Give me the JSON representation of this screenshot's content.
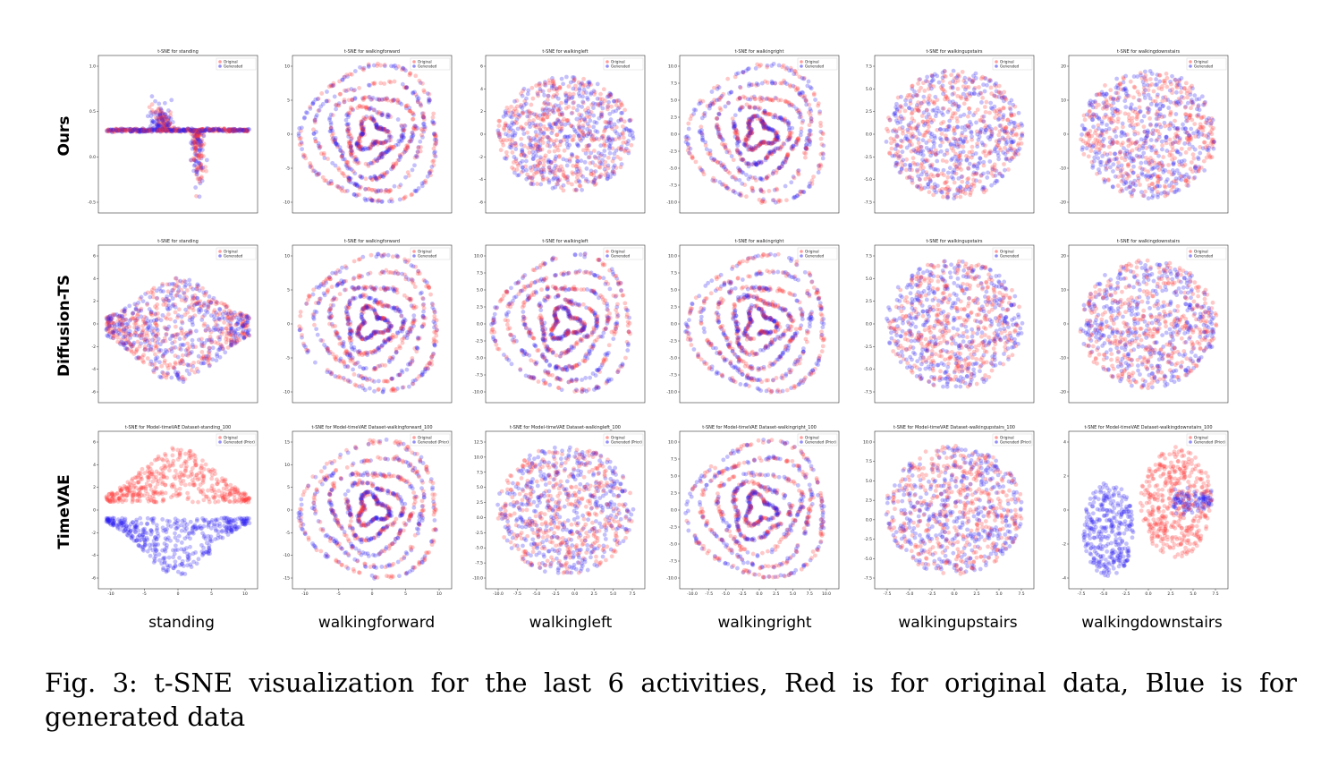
{
  "row_labels": [
    "Ours",
    "Diffusion-TS",
    "TimeVAE"
  ],
  "column_labels": [
    "standing",
    "walkingforward",
    "walkingleft",
    "walkingright",
    "walkingupstairs",
    "walkingdownstairs"
  ],
  "caption": {
    "prefix": "Fig. 3:",
    "text": "t-SNE visualization for the last 6 activities, Red is for original data, Blue is for generated data"
  },
  "colors": {
    "original": "#ff3b3b",
    "generated": "#2a1ef0"
  },
  "chart_data": [
    {
      "type": "scatter",
      "row": "Ours",
      "activity": "standing",
      "title": "t-SNE for standing",
      "legend": [
        "Original",
        "Generated"
      ],
      "shape": "standing_ours",
      "y_ticks": [
        "-0.5",
        "0.0",
        "0.5",
        "1.0"
      ],
      "x_ticks": []
    },
    {
      "type": "scatter",
      "row": "Ours",
      "activity": "walkingforward",
      "title": "t-SNE for walkingforward",
      "legend": [
        "Original",
        "Generated"
      ],
      "shape": "rings",
      "y_ticks": [
        "-10",
        "-5",
        "0",
        "5",
        "10"
      ],
      "x_ticks": []
    },
    {
      "type": "scatter",
      "row": "Ours",
      "activity": "walkingleft",
      "title": "t-SNE for walkingleft",
      "legend": [
        "Original",
        "Generated"
      ],
      "shape": "blob",
      "y_ticks": [
        "-6",
        "-4",
        "-2",
        "0",
        "2",
        "4",
        "6"
      ],
      "x_ticks": []
    },
    {
      "type": "scatter",
      "row": "Ours",
      "activity": "walkingright",
      "title": "t-SNE for walkingright",
      "legend": [
        "Original",
        "Generated"
      ],
      "shape": "rings",
      "y_ticks": [
        "-10.0",
        "-7.5",
        "-5.0",
        "-2.5",
        "0.0",
        "2.5",
        "5.0",
        "7.5",
        "10.0"
      ],
      "x_ticks": []
    },
    {
      "type": "scatter",
      "row": "Ours",
      "activity": "walkingupstairs",
      "title": "t-SNE for walkingupstairs",
      "legend": [
        "Original",
        "Generated"
      ],
      "shape": "disc",
      "y_ticks": [
        "-7.5",
        "-5.0",
        "-2.5",
        "0.0",
        "2.5",
        "5.0",
        "7.5"
      ],
      "x_ticks": []
    },
    {
      "type": "scatter",
      "row": "Ours",
      "activity": "walkingdownstairs",
      "title": "t-SNE for walkingdownstairs",
      "legend": [
        "Original",
        "Generated"
      ],
      "shape": "disc",
      "y_ticks": [
        "-20",
        "-10",
        "0",
        "10",
        "20"
      ],
      "x_ticks": []
    },
    {
      "type": "scatter",
      "row": "Diffusion-TS",
      "activity": "standing",
      "title": "t-SNE for standing",
      "legend": [
        "Original",
        "Generated"
      ],
      "shape": "standing_diff",
      "y_ticks": [
        "-6",
        "-4",
        "-2",
        "0",
        "2",
        "4",
        "6"
      ],
      "x_ticks": []
    },
    {
      "type": "scatter",
      "row": "Diffusion-TS",
      "activity": "walkingforward",
      "title": "t-SNE for walkingforward",
      "legend": [
        "Original",
        "Generated"
      ],
      "shape": "rings",
      "y_ticks": [
        "-10",
        "-5",
        "0",
        "5",
        "10"
      ],
      "x_ticks": []
    },
    {
      "type": "scatter",
      "row": "Diffusion-TS",
      "activity": "walkingleft",
      "title": "t-SNE for walkingleft",
      "legend": [
        "Original",
        "Generated"
      ],
      "shape": "rings",
      "y_ticks": [
        "-10.0",
        "-7.5",
        "-5.0",
        "-2.5",
        "0.0",
        "2.5",
        "5.0",
        "7.5",
        "10.0"
      ],
      "x_ticks": []
    },
    {
      "type": "scatter",
      "row": "Diffusion-TS",
      "activity": "walkingright",
      "title": "t-SNE for walkingright",
      "legend": [
        "Original",
        "Generated"
      ],
      "shape": "rings",
      "y_ticks": [
        "-10.0",
        "-7.5",
        "-5.0",
        "-2.5",
        "0.0",
        "2.5",
        "5.0",
        "7.5",
        "10.0"
      ],
      "x_ticks": []
    },
    {
      "type": "scatter",
      "row": "Diffusion-TS",
      "activity": "walkingupstairs",
      "title": "t-SNE for walkingupstairs",
      "legend": [
        "Original",
        "Generated"
      ],
      "shape": "disc",
      "y_ticks": [
        "-7.5",
        "-5.0",
        "-2.5",
        "0.0",
        "2.5",
        "5.0",
        "7.5"
      ],
      "x_ticks": []
    },
    {
      "type": "scatter",
      "row": "Diffusion-TS",
      "activity": "walkingdownstairs",
      "title": "t-SNE for walkingdownstairs",
      "legend": [
        "Original",
        "Generated"
      ],
      "shape": "disc",
      "y_ticks": [
        "-20",
        "-10",
        "0",
        "10",
        "20"
      ],
      "x_ticks": []
    },
    {
      "type": "scatter",
      "row": "TimeVAE",
      "activity": "standing",
      "title": "t-SNE for Model-timeVAE Dataset-standing_100",
      "legend": [
        "Original",
        "Generated (Prior)"
      ],
      "shape": "standing_vae",
      "y_ticks": [
        "-6",
        "-4",
        "-2",
        "0",
        "2",
        "4",
        "6"
      ],
      "x_ticks": [
        "-10",
        "-5",
        "0",
        "5",
        "10"
      ]
    },
    {
      "type": "scatter",
      "row": "TimeVAE",
      "activity": "walkingforward",
      "title": "t-SNE for Model-timeVAE Dataset-walkingforward_100",
      "legend": [
        "Original",
        "Generated (Prior)"
      ],
      "shape": "rings",
      "y_ticks": [
        "-15",
        "-10",
        "-5",
        "0",
        "5",
        "10",
        "15"
      ],
      "x_ticks": [
        "-10",
        "-5",
        "0",
        "5",
        "10"
      ]
    },
    {
      "type": "scatter",
      "row": "TimeVAE",
      "activity": "walkingleft",
      "title": "t-SNE for Model-timeVAE Dataset-walkingleft_100",
      "legend": [
        "Original",
        "Generated (Prior)"
      ],
      "shape": "disc",
      "y_ticks": [
        "-10.0",
        "-7.5",
        "-5.0",
        "-2.5",
        "0.0",
        "2.5",
        "5.0",
        "7.5",
        "10.0",
        "12.5"
      ],
      "x_ticks": [
        "-10.0",
        "-7.5",
        "-5.0",
        "-2.5",
        "0.0",
        "2.5",
        "5.0",
        "7.5"
      ]
    },
    {
      "type": "scatter",
      "row": "TimeVAE",
      "activity": "walkingright",
      "title": "t-SNE for Model-timeVAE Dataset-walkingright_100",
      "legend": [
        "Original",
        "Generated (Prior)"
      ],
      "shape": "rings",
      "y_ticks": [
        "-10.0",
        "-7.5",
        "-5.0",
        "-2.5",
        "0.0",
        "2.5",
        "5.0",
        "7.5",
        "10.0"
      ],
      "x_ticks": [
        "-10.0",
        "-7.5",
        "-5.0",
        "-2.5",
        "0.0",
        "2.5",
        "5.0",
        "7.5",
        "10.0"
      ]
    },
    {
      "type": "scatter",
      "row": "TimeVAE",
      "activity": "walkingupstairs",
      "title": "t-SNE for Model-timeVAE Dataset-walkingupstairs_100",
      "legend": [
        "Original",
        "Generated (Prior)"
      ],
      "shape": "disc",
      "y_ticks": [
        "-7.5",
        "-5.0",
        "-2.5",
        "0.0",
        "2.5",
        "5.0",
        "7.5",
        "10.0"
      ],
      "x_ticks": [
        "-7.5",
        "-5.0",
        "-2.5",
        "0.0",
        "2.5",
        "5.0",
        "7.5"
      ]
    },
    {
      "type": "scatter",
      "row": "TimeVAE",
      "activity": "walkingdownstairs",
      "title": "t-SNE for Model-timeVAE Dataset-walkingdownstairs_100",
      "legend": [
        "Original",
        "Generated (Prior)"
      ],
      "shape": "split",
      "y_ticks": [
        "-4",
        "-2",
        "0",
        "2",
        "4"
      ],
      "x_ticks": [
        "-7.5",
        "-5.0",
        "-2.5",
        "0.0",
        "2.5",
        "5.0",
        "7.5"
      ]
    }
  ]
}
